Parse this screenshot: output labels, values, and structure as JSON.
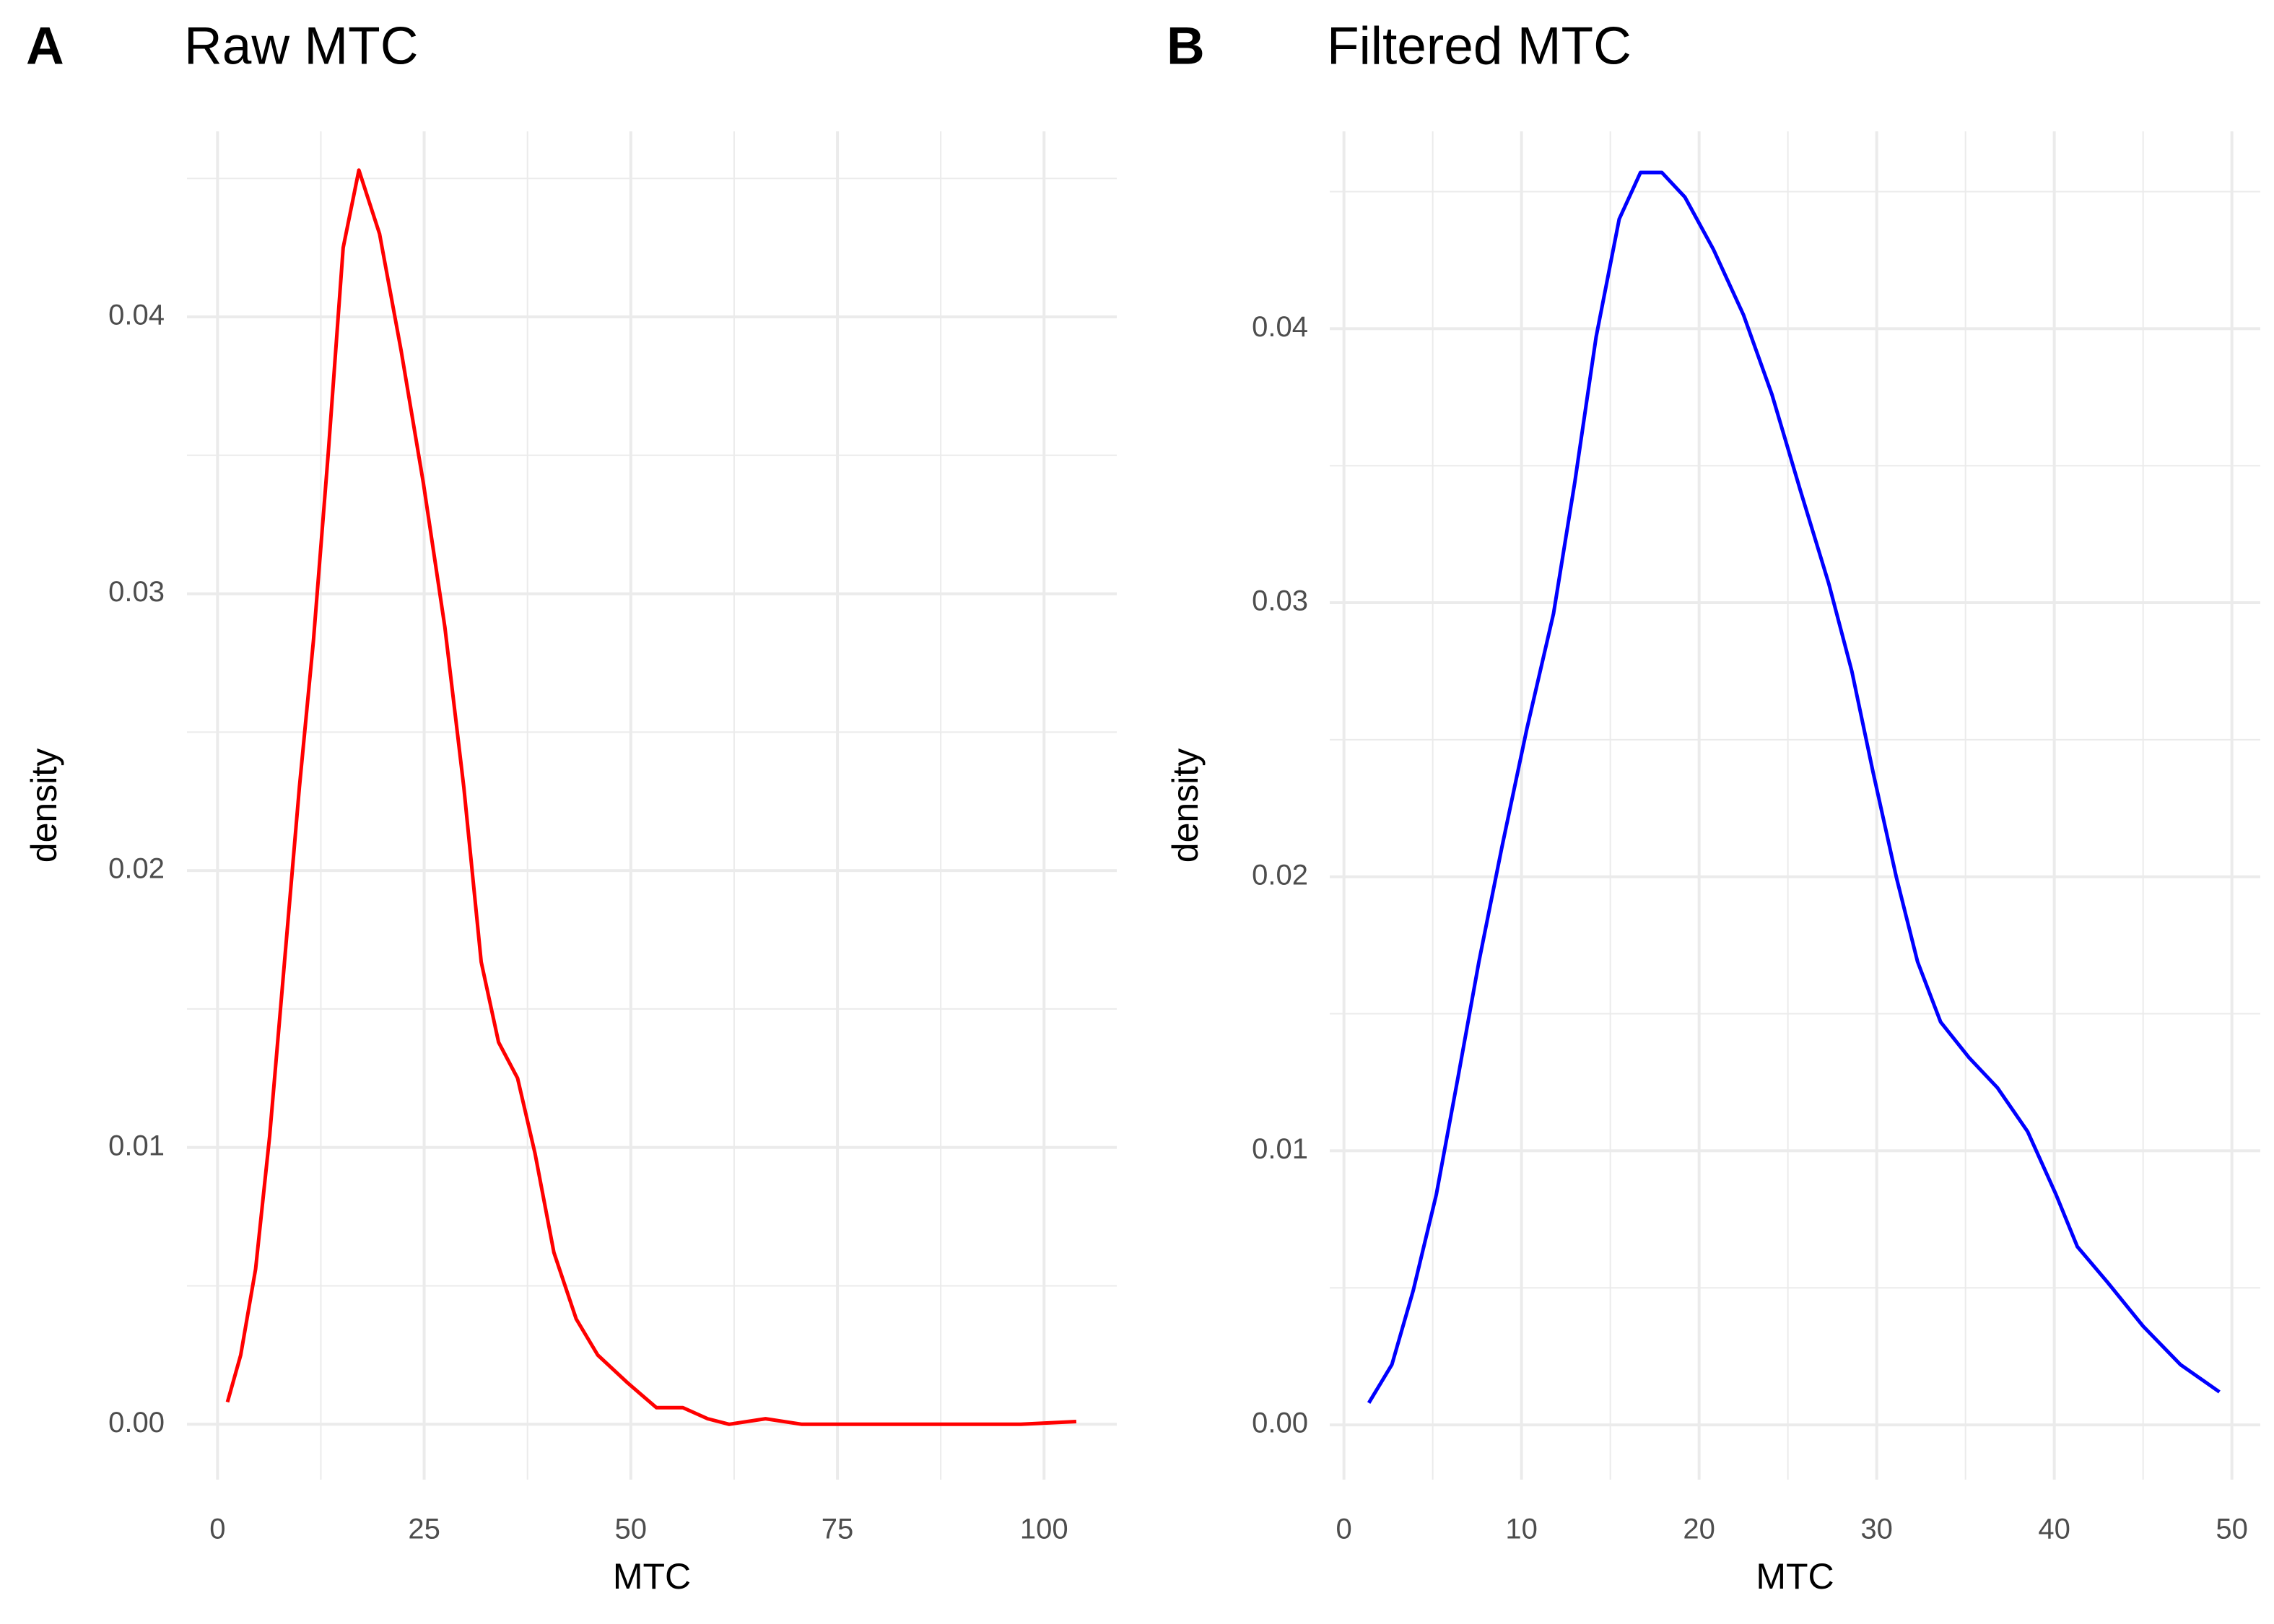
{
  "chart_data": [
    {
      "type": "line",
      "tag": "A",
      "title": "Raw MTC",
      "x_label": "MTC",
      "y_label": "density",
      "color": "#ff0000",
      "grid": true,
      "minor_grid": true,
      "xlim": [
        -3.7,
        108.8
      ],
      "ylim": [
        -0.002,
        0.0467
      ],
      "xticks": [
        0,
        25,
        50,
        75,
        100
      ],
      "yticks": [
        {
          "value": 0,
          "label": "0.00"
        },
        0.01,
        0.02,
        0.03,
        0.04
      ],
      "x": [
        1.2,
        2.8,
        4.6,
        6.3,
        8.1,
        9.9,
        11.6,
        13.4,
        15.2,
        17.1,
        19.6,
        22.2,
        24.9,
        27.5,
        29.8,
        31.9,
        34.0,
        36.3,
        38.4,
        40.7,
        43.4,
        46.0,
        49.6,
        53.1,
        56.3,
        59.3,
        61.9,
        66.3,
        70.7,
        79.5,
        88.4,
        97.2,
        103.9
      ],
      "values": [
        0.0008,
        0.0025,
        0.0056,
        0.0104,
        0.0167,
        0.023,
        0.0283,
        0.0351,
        0.0425,
        0.0453,
        0.043,
        0.0388,
        0.034,
        0.0288,
        0.023,
        0.0167,
        0.0138,
        0.0125,
        0.0098,
        0.0062,
        0.0038,
        0.0025,
        0.0015,
        0.0006,
        0.0006,
        0.0002,
        0.0,
        0.0002,
        0.0,
        0.0,
        0.0,
        0.0,
        0.0001
      ]
    },
    {
      "type": "line",
      "tag": "B",
      "title": "Filtered MTC",
      "x_label": "MTC",
      "y_label": "density",
      "color": "#0000ff",
      "grid": true,
      "minor_grid": true,
      "xlim": [
        -0.8,
        51.6
      ],
      "ylim": [
        -0.002,
        0.0472
      ],
      "xticks": [
        0,
        10,
        20,
        30,
        40,
        50
      ],
      "yticks": [
        {
          "value": 0,
          "label": "0.00"
        },
        0.01,
        0.02,
        0.03,
        0.04
      ],
      "x": [
        1.4,
        2.7,
        3.9,
        5.2,
        6.4,
        7.6,
        8.9,
        10.3,
        11.8,
        13.0,
        14.2,
        15.5,
        16.7,
        17.9,
        19.2,
        20.8,
        22.5,
        24.1,
        25.7,
        27.3,
        28.6,
        29.8,
        31.1,
        32.3,
        33.6,
        35.2,
        36.8,
        38.5,
        40.1,
        41.3,
        43.0,
        45.0,
        47.1,
        49.3
      ],
      "values": [
        0.0008,
        0.0022,
        0.0049,
        0.0084,
        0.0126,
        0.0169,
        0.0211,
        0.0254,
        0.0296,
        0.0344,
        0.0397,
        0.044,
        0.0457,
        0.0457,
        0.0448,
        0.0429,
        0.0405,
        0.0376,
        0.0341,
        0.0307,
        0.0275,
        0.0238,
        0.02,
        0.0169,
        0.0147,
        0.0134,
        0.0123,
        0.0107,
        0.0084,
        0.0065,
        0.0052,
        0.0036,
        0.0022,
        0.0012
      ]
    }
  ]
}
